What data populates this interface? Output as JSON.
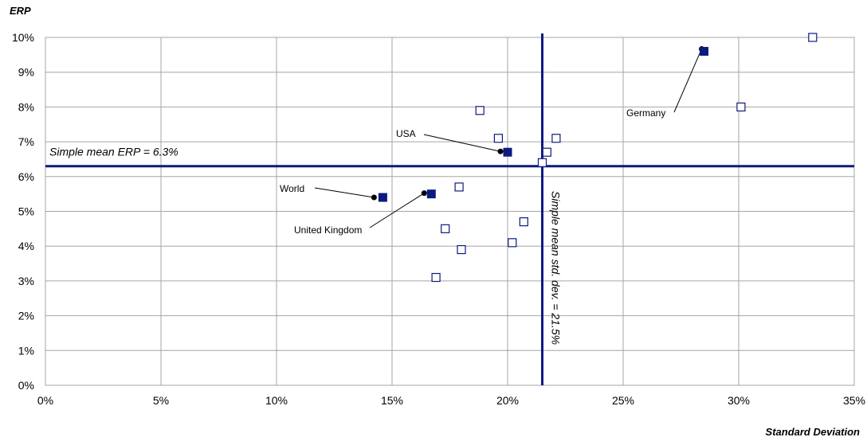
{
  "chart_data": {
    "type": "scatter",
    "ylabel": "ERP",
    "xlabel": "Standard Deviation",
    "xlim": [
      0,
      35
    ],
    "ylim": [
      0,
      10
    ],
    "xticks": [
      "0%",
      "5%",
      "10%",
      "15%",
      "20%",
      "25%",
      "30%",
      "35%"
    ],
    "yticks": [
      "0%",
      "1%",
      "2%",
      "3%",
      "4%",
      "5%",
      "6%",
      "7%",
      "8%",
      "9%",
      "10%"
    ],
    "grid": true,
    "colors": {
      "reference_line": "#0d1a80",
      "highlighted_marker": "#0d1a80",
      "open_marker": "#0d1a80",
      "grid": "#a6a6a6"
    },
    "open_points": [
      {
        "x": 16.9,
        "y": 3.1
      },
      {
        "x": 17.3,
        "y": 4.5
      },
      {
        "x": 17.9,
        "y": 5.7
      },
      {
        "x": 18.0,
        "y": 3.9
      },
      {
        "x": 18.8,
        "y": 7.9
      },
      {
        "x": 19.6,
        "y": 7.1
      },
      {
        "x": 20.2,
        "y": 4.1
      },
      {
        "x": 20.7,
        "y": 4.7
      },
      {
        "x": 21.5,
        "y": 6.4
      },
      {
        "x": 21.7,
        "y": 6.7
      },
      {
        "x": 22.1,
        "y": 7.1
      },
      {
        "x": 30.1,
        "y": 8.0
      },
      {
        "x": 33.2,
        "y": 10.0
      }
    ],
    "highlighted_points": [
      {
        "label": "World",
        "x": 14.6,
        "y": 5.4
      },
      {
        "label": "United Kingdom",
        "x": 16.7,
        "y": 5.5
      },
      {
        "label": "USA",
        "x": 20.0,
        "y": 6.7
      },
      {
        "label": "Germany",
        "x": 28.5,
        "y": 9.6
      }
    ],
    "reference_lines": [
      {
        "orientation": "horizontal",
        "value": 6.3,
        "label": "Simple mean ERP = 6.3%"
      },
      {
        "orientation": "vertical",
        "value": 21.5,
        "label": "Simple mean std. dev. = 21.5%"
      }
    ]
  }
}
